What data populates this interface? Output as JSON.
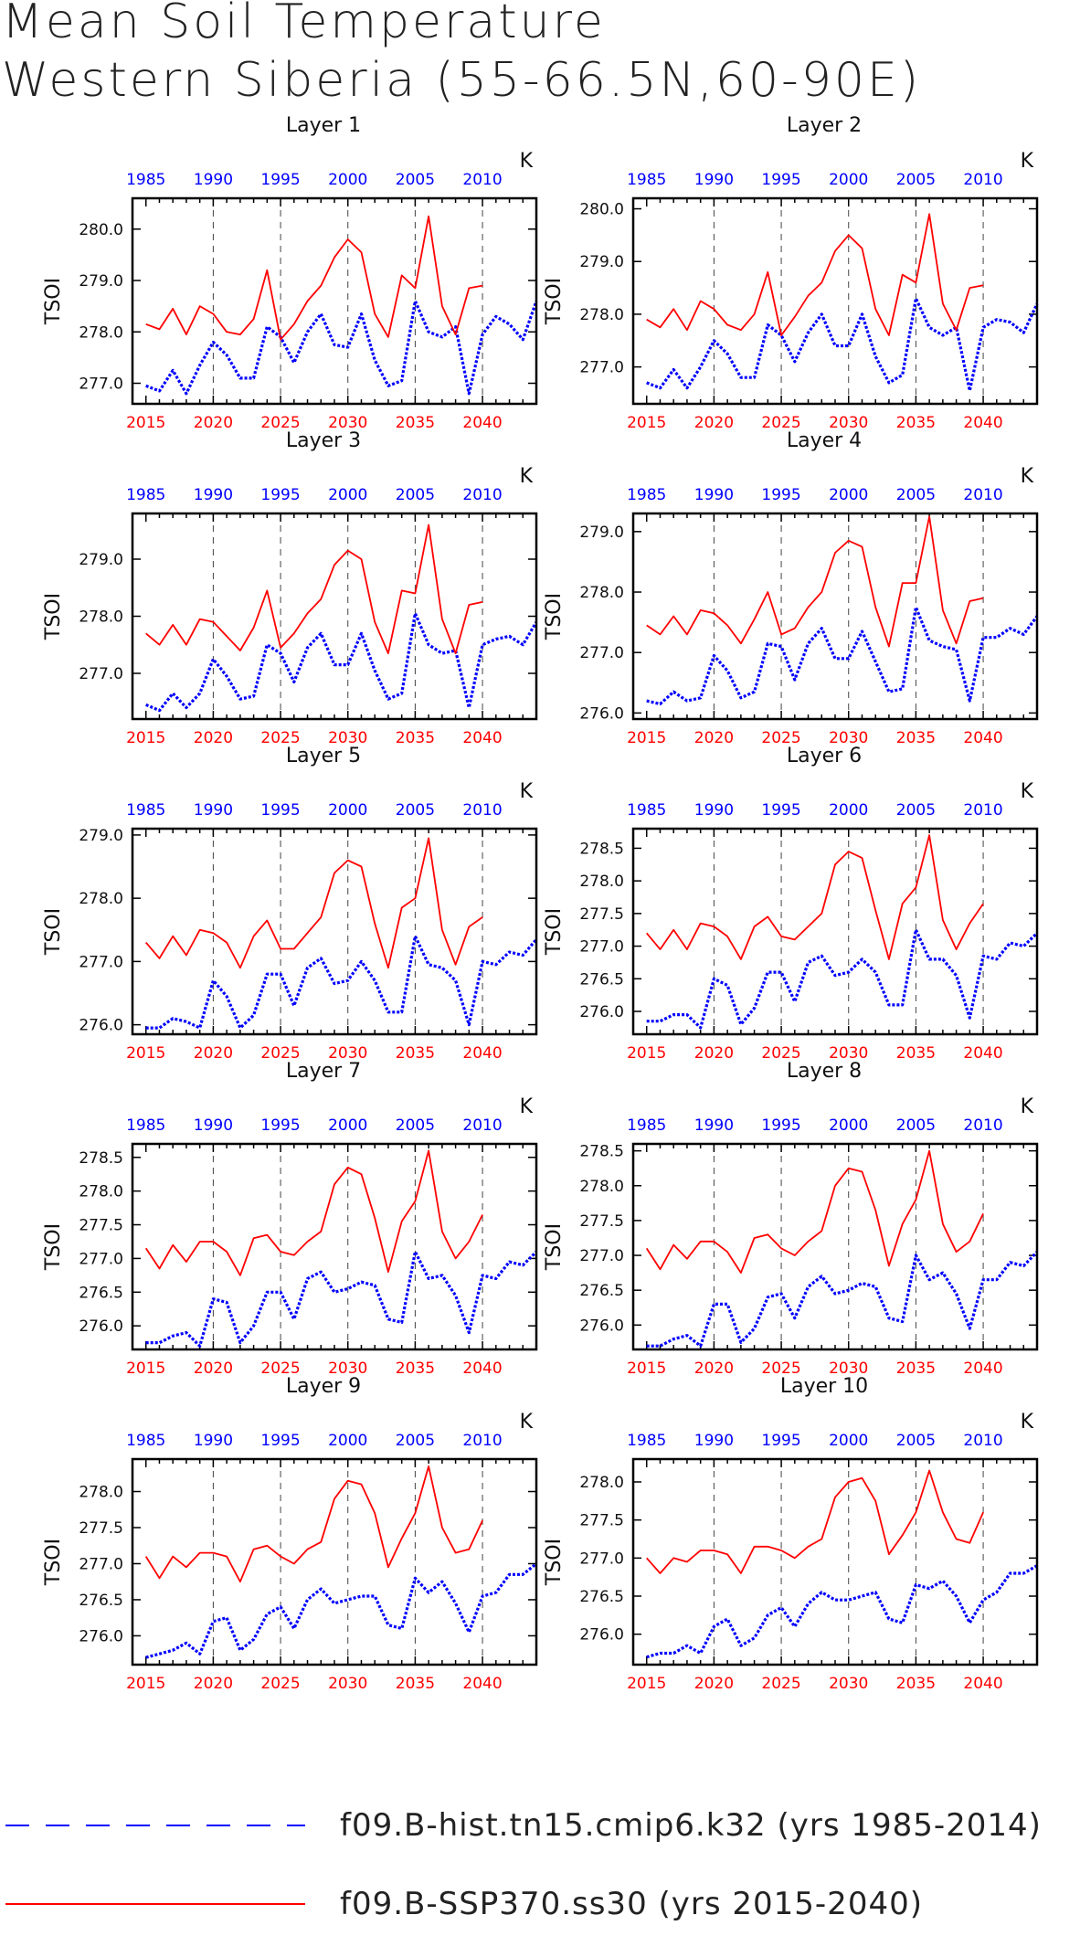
{
  "title_line1": "Mean Soil Temperature",
  "title_line2": "Western Siberia (55-66.5N,60-90E)",
  "axis": {
    "ylabel": "TSOI",
    "unit": "K",
    "top_ticks": [
      "1985",
      "1990",
      "1995",
      "2000",
      "2005",
      "2010"
    ],
    "bottom_ticks": [
      "2015",
      "2020",
      "2025",
      "2030",
      "2035",
      "2040"
    ],
    "top_color": "#0000ff",
    "bottom_color": "#ff0000"
  },
  "legend": {
    "hist_label": "f09.B-hist.tn15.cmip6.k32 (yrs 1985-2014)",
    "ssp_label": "f09.B-SSP370.ss30 (yrs 2015-2040)",
    "hist_color": "#0000ff",
    "ssp_color": "#ff0000"
  },
  "chart_data": [
    {
      "type": "line",
      "title": "Layer 1",
      "ylabel": "TSOI",
      "ylim": [
        276.6,
        280.6
      ],
      "yticks": [
        "277.0",
        "278.0",
        "279.0",
        "280.0"
      ],
      "series": [
        {
          "name": "f09.B-hist.tn15.cmip6.k32 (yrs 1985-2014)",
          "x_start": 1985,
          "values": [
            276.95,
            276.85,
            277.25,
            276.8,
            277.35,
            277.8,
            277.55,
            277.1,
            277.1,
            278.1,
            277.9,
            277.4,
            278.0,
            278.35,
            277.75,
            277.7,
            278.35,
            277.45,
            276.95,
            277.05,
            278.6,
            278.0,
            277.9,
            278.1,
            276.8,
            277.95,
            278.3,
            278.15,
            277.85,
            278.6
          ]
        },
        {
          "name": "f09.B-SSP370.ss30 (yrs 2015-2040)",
          "x_start": 2015,
          "values": [
            278.15,
            278.05,
            278.45,
            277.95,
            278.5,
            278.35,
            278.0,
            277.95,
            278.25,
            279.2,
            277.85,
            278.15,
            278.6,
            278.9,
            279.45,
            279.8,
            279.55,
            278.35,
            277.9,
            279.1,
            278.85,
            280.25,
            278.5,
            277.95,
            278.85,
            278.9
          ]
        }
      ]
    },
    {
      "type": "line",
      "title": "Layer 2",
      "ylabel": "TSOI",
      "ylim": [
        276.3,
        280.2
      ],
      "yticks": [
        "277.0",
        "278.0",
        "279.0",
        "280.0"
      ],
      "series": [
        {
          "name": "f09.B-hist.tn15.cmip6.k32 (yrs 1985-2014)",
          "x_start": 1985,
          "values": [
            276.7,
            276.6,
            276.95,
            276.6,
            277.0,
            277.5,
            277.25,
            276.8,
            276.8,
            277.8,
            277.6,
            277.1,
            277.65,
            278.0,
            277.4,
            277.4,
            278.0,
            277.2,
            276.7,
            276.85,
            278.3,
            277.75,
            277.6,
            277.75,
            276.55,
            277.75,
            277.9,
            277.85,
            277.65,
            278.2
          ]
        },
        {
          "name": "f09.B-SSP370.ss30 (yrs 2015-2040)",
          "x_start": 2015,
          "values": [
            277.9,
            277.75,
            278.1,
            277.7,
            278.25,
            278.1,
            277.8,
            277.7,
            278.0,
            278.8,
            277.6,
            277.95,
            278.35,
            278.6,
            279.2,
            279.5,
            279.25,
            278.1,
            277.6,
            278.75,
            278.6,
            279.9,
            278.2,
            277.7,
            278.5,
            278.55
          ]
        }
      ]
    },
    {
      "type": "line",
      "title": "Layer 3",
      "ylabel": "TSOI",
      "ylim": [
        276.2,
        279.8
      ],
      "yticks": [
        "277.0",
        "278.0",
        "279.0"
      ],
      "series": [
        {
          "name": "f09.B-hist.tn15.cmip6.k32 (yrs 1985-2014)",
          "x_start": 1985,
          "values": [
            276.45,
            276.35,
            276.65,
            276.4,
            276.65,
            277.25,
            276.95,
            276.55,
            276.6,
            277.5,
            277.35,
            276.85,
            277.45,
            277.7,
            277.15,
            277.15,
            277.7,
            277.05,
            276.55,
            276.65,
            278.05,
            277.5,
            277.35,
            277.4,
            276.4,
            277.5,
            277.6,
            277.65,
            277.5,
            277.9
          ]
        },
        {
          "name": "f09.B-SSP370.ss30 (yrs 2015-2040)",
          "x_start": 2015,
          "values": [
            277.7,
            277.5,
            277.85,
            277.5,
            277.95,
            277.9,
            277.65,
            277.4,
            277.8,
            278.45,
            277.45,
            277.7,
            278.05,
            278.3,
            278.9,
            279.15,
            279.0,
            277.9,
            277.35,
            278.45,
            278.4,
            279.6,
            277.95,
            277.35,
            278.2,
            278.25
          ]
        }
      ]
    },
    {
      "type": "line",
      "title": "Layer 4",
      "ylabel": "TSOI",
      "ylim": [
        275.9,
        279.3
      ],
      "yticks": [
        "276.0",
        "277.0",
        "278.0",
        "279.0"
      ],
      "series": [
        {
          "name": "f09.B-hist.tn15.cmip6.k32 (yrs 1985-2014)",
          "x_start": 1985,
          "values": [
            276.2,
            276.15,
            276.35,
            276.2,
            276.25,
            276.95,
            276.7,
            276.25,
            276.35,
            277.15,
            277.1,
            276.55,
            277.15,
            277.4,
            276.9,
            276.9,
            277.35,
            276.85,
            276.35,
            276.4,
            277.75,
            277.2,
            277.1,
            277.05,
            276.2,
            277.25,
            277.25,
            277.4,
            277.3,
            277.6
          ]
        },
        {
          "name": "f09.B-SSP370.ss30 (yrs 2015-2040)",
          "x_start": 2015,
          "values": [
            277.45,
            277.3,
            277.6,
            277.3,
            277.7,
            277.65,
            277.45,
            277.15,
            277.55,
            278.0,
            277.3,
            277.4,
            277.75,
            278.0,
            278.65,
            278.85,
            278.75,
            277.75,
            277.1,
            278.15,
            278.15,
            279.25,
            277.7,
            277.15,
            277.85,
            277.9
          ]
        }
      ]
    },
    {
      "type": "line",
      "title": "Layer 5",
      "ylabel": "TSOI",
      "ylim": [
        275.85,
        279.1
      ],
      "yticks": [
        "276.0",
        "277.0",
        "278.0",
        "279.0"
      ],
      "series": [
        {
          "name": "f09.B-hist.tn15.cmip6.k32 (yrs 1985-2014)",
          "x_start": 1985,
          "values": [
            275.95,
            275.95,
            276.1,
            276.05,
            275.95,
            276.7,
            276.45,
            275.95,
            276.15,
            276.8,
            276.8,
            276.3,
            276.9,
            277.05,
            276.65,
            276.7,
            277.0,
            276.7,
            276.2,
            276.2,
            277.4,
            276.95,
            276.9,
            276.7,
            276.0,
            277.0,
            276.95,
            277.15,
            277.1,
            277.35
          ]
        },
        {
          "name": "f09.B-SSP370.ss30 (yrs 2015-2040)",
          "x_start": 2015,
          "values": [
            277.3,
            277.05,
            277.4,
            277.1,
            277.5,
            277.45,
            277.3,
            276.9,
            277.4,
            277.65,
            277.2,
            277.2,
            277.45,
            277.7,
            278.4,
            278.6,
            278.5,
            277.6,
            276.9,
            277.85,
            278.0,
            278.95,
            277.5,
            276.95,
            277.55,
            277.7
          ]
        }
      ]
    },
    {
      "type": "line",
      "title": "Layer 6",
      "ylabel": "TSOI",
      "ylim": [
        275.65,
        278.8
      ],
      "yticks": [
        "276.0",
        "276.5",
        "277.0",
        "277.5",
        "278.0",
        "278.5"
      ],
      "series": [
        {
          "name": "f09.B-hist.tn15.cmip6.k32 (yrs 1985-2014)",
          "x_start": 1985,
          "values": [
            275.85,
            275.85,
            275.95,
            275.95,
            275.75,
            276.5,
            276.4,
            275.8,
            276.05,
            276.6,
            276.6,
            276.15,
            276.75,
            276.85,
            276.55,
            276.6,
            276.8,
            276.6,
            276.1,
            276.1,
            277.25,
            276.8,
            276.8,
            276.55,
            275.9,
            276.85,
            276.8,
            277.05,
            277.0,
            277.2
          ]
        },
        {
          "name": "f09.B-SSP370.ss30 (yrs 2015-2040)",
          "x_start": 2015,
          "values": [
            277.2,
            276.95,
            277.25,
            276.95,
            277.35,
            277.3,
            277.15,
            276.8,
            277.3,
            277.45,
            277.15,
            277.1,
            277.3,
            277.5,
            278.25,
            278.45,
            278.35,
            277.55,
            276.8,
            277.65,
            277.9,
            278.7,
            277.4,
            276.95,
            277.35,
            277.65
          ]
        }
      ]
    },
    {
      "type": "line",
      "title": "Layer 7",
      "ylabel": "TSOI",
      "ylim": [
        275.65,
        278.7
      ],
      "yticks": [
        "276.0",
        "276.5",
        "277.0",
        "277.5",
        "278.0",
        "278.5"
      ],
      "series": [
        {
          "name": "f09.B-hist.tn15.cmip6.k32 (yrs 1985-2014)",
          "x_start": 1985,
          "values": [
            275.75,
            275.75,
            275.85,
            275.9,
            275.7,
            276.4,
            276.35,
            275.75,
            276.0,
            276.5,
            276.5,
            276.1,
            276.7,
            276.8,
            276.5,
            276.55,
            276.65,
            276.6,
            276.1,
            276.05,
            277.1,
            276.7,
            276.75,
            276.45,
            275.9,
            276.75,
            276.7,
            276.95,
            276.9,
            277.1
          ]
        },
        {
          "name": "f09.B-SSP370.ss30 (yrs 2015-2040)",
          "x_start": 2015,
          "values": [
            277.15,
            276.85,
            277.2,
            276.95,
            277.25,
            277.25,
            277.1,
            276.75,
            277.3,
            277.35,
            277.1,
            277.05,
            277.25,
            277.4,
            278.1,
            278.35,
            278.25,
            277.6,
            276.8,
            277.55,
            277.85,
            278.6,
            277.4,
            277.0,
            277.25,
            277.65
          ]
        }
      ]
    },
    {
      "type": "line",
      "title": "Layer 8",
      "ylabel": "TSOI",
      "ylim": [
        275.65,
        278.6
      ],
      "yticks": [
        "276.0",
        "276.5",
        "277.0",
        "277.5",
        "278.0",
        "278.5"
      ],
      "series": [
        {
          "name": "f09.B-hist.tn15.cmip6.k32 (yrs 1985-2014)",
          "x_start": 1985,
          "values": [
            275.7,
            275.7,
            275.8,
            275.85,
            275.7,
            276.3,
            276.3,
            275.75,
            275.95,
            276.4,
            276.45,
            276.1,
            276.55,
            276.7,
            276.45,
            276.5,
            276.6,
            276.55,
            276.1,
            276.05,
            277.0,
            276.65,
            276.75,
            276.45,
            275.95,
            276.65,
            276.65,
            276.9,
            276.85,
            277.05
          ]
        },
        {
          "name": "f09.B-SSP370.ss30 (yrs 2015-2040)",
          "x_start": 2015,
          "values": [
            277.1,
            276.8,
            277.15,
            276.95,
            277.2,
            277.2,
            277.05,
            276.75,
            277.25,
            277.3,
            277.1,
            277.0,
            277.2,
            277.35,
            278.0,
            278.25,
            278.2,
            277.65,
            276.85,
            277.45,
            277.8,
            278.5,
            277.45,
            277.05,
            277.2,
            277.6
          ]
        }
      ]
    },
    {
      "type": "line",
      "title": "Layer 9",
      "ylabel": "TSOI",
      "ylim": [
        275.6,
        278.45
      ],
      "yticks": [
        "276.0",
        "276.5",
        "277.0",
        "277.5",
        "278.0"
      ],
      "series": [
        {
          "name": "f09.B-hist.tn15.cmip6.k32 (yrs 1985-2014)",
          "x_start": 1985,
          "values": [
            275.7,
            275.75,
            275.8,
            275.9,
            275.75,
            276.2,
            276.25,
            275.8,
            275.95,
            276.3,
            276.4,
            276.1,
            276.5,
            276.65,
            276.45,
            276.5,
            276.55,
            276.55,
            276.15,
            276.1,
            276.8,
            276.6,
            276.75,
            276.45,
            276.05,
            276.55,
            276.6,
            276.85,
            276.85,
            277.0
          ]
        },
        {
          "name": "f09.B-SSP370.ss30 (yrs 2015-2040)",
          "x_start": 2015,
          "values": [
            277.1,
            276.8,
            277.1,
            276.95,
            277.15,
            277.15,
            277.1,
            276.75,
            277.2,
            277.25,
            277.1,
            277.0,
            277.2,
            277.3,
            277.9,
            278.15,
            278.1,
            277.7,
            276.95,
            277.35,
            277.7,
            278.35,
            277.5,
            277.15,
            277.2,
            277.6
          ]
        }
      ]
    },
    {
      "type": "line",
      "title": "Layer 10",
      "ylabel": "TSOI",
      "ylim": [
        275.6,
        278.3
      ],
      "yticks": [
        "276.0",
        "276.5",
        "277.0",
        "277.5",
        "278.0"
      ],
      "series": [
        {
          "name": "f09.B-hist.tn15.cmip6.k32 (yrs 1985-2014)",
          "x_start": 1985,
          "values": [
            275.7,
            275.75,
            275.75,
            275.85,
            275.75,
            276.1,
            276.2,
            275.85,
            275.95,
            276.25,
            276.35,
            276.1,
            276.4,
            276.55,
            276.45,
            276.45,
            276.5,
            276.55,
            276.2,
            276.15,
            276.65,
            276.6,
            276.7,
            276.5,
            276.15,
            276.45,
            276.55,
            276.8,
            276.8,
            276.9
          ]
        },
        {
          "name": "f09.B-SSP370.ss30 (yrs 2015-2040)",
          "x_start": 2015,
          "values": [
            277.0,
            276.8,
            277.0,
            276.95,
            277.1,
            277.1,
            277.05,
            276.8,
            277.15,
            277.15,
            277.1,
            277.0,
            277.15,
            277.25,
            277.8,
            278.0,
            278.05,
            277.75,
            277.05,
            277.3,
            277.6,
            278.15,
            277.6,
            277.25,
            277.2,
            277.6
          ]
        }
      ]
    }
  ]
}
